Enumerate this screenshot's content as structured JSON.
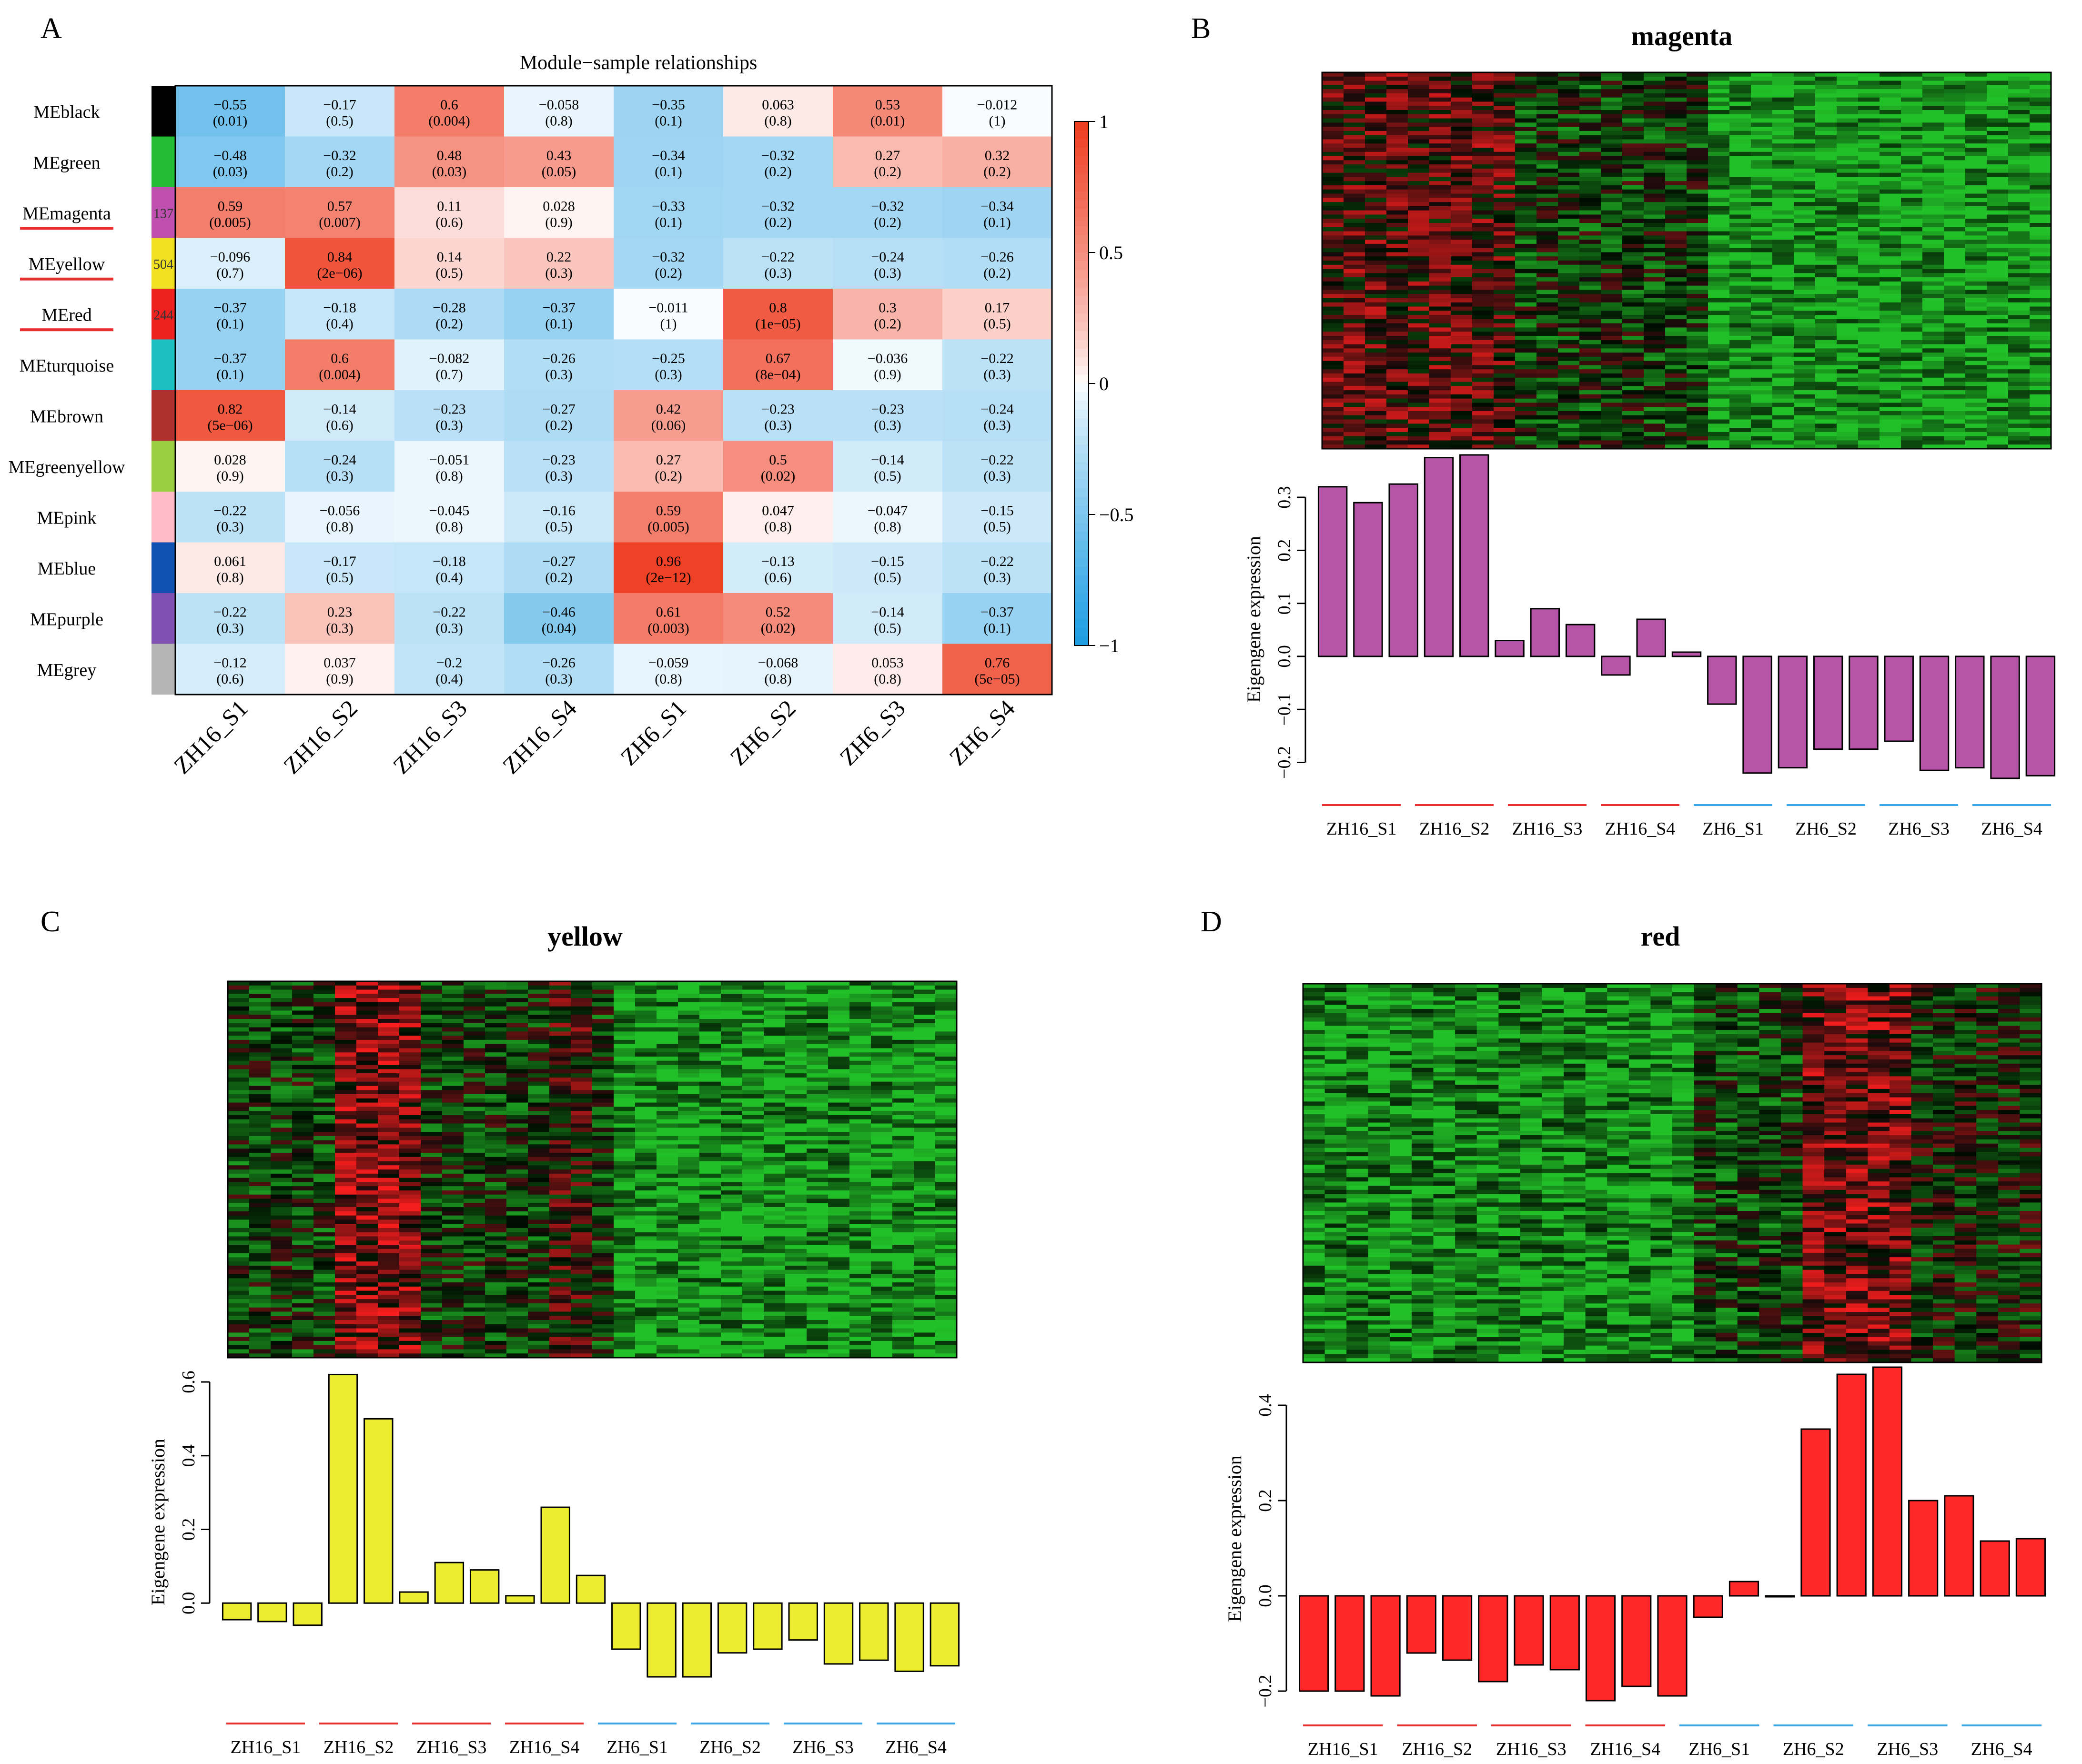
{
  "panels": {
    "A": "A",
    "B": "B",
    "C": "C",
    "D": "D"
  },
  "colors": {
    "heat_pos": "#ee3b1f",
    "heat_neg": "#1b9ce2",
    "heat_mid": "#ffffff",
    "expr_green": "#22c03a",
    "expr_red": "#ff2020",
    "underline_red": "#e83030",
    "underline_blue": "#3aa6e6",
    "bar_magenta": "#b654a8",
    "bar_yellow": "#ecec30",
    "bar_red": "#ff2828"
  },
  "chart_data": [
    {
      "type": "heatmap",
      "title": "Module−sample relationships",
      "columns": [
        "ZH16_S1",
        "ZH16_S2",
        "ZH16_S3",
        "ZH16_S4",
        "ZH6_S1",
        "ZH6_S2",
        "ZH6_S3",
        "ZH6_S4"
      ],
      "rows": [
        {
          "name": "MEblack",
          "color": "#000000",
          "count": "",
          "values": [
            -0.55,
            -0.17,
            0.6,
            -0.058,
            -0.35,
            0.063,
            0.53,
            -0.012
          ],
          "labels": [
            "−0.55",
            "−0.17",
            "0.6",
            "−0.058",
            "−0.35",
            "0.063",
            "0.53",
            "−0.012"
          ],
          "p": [
            "(0.01)",
            "(0.5)",
            "(0.004)",
            "(0.8)",
            "(0.1)",
            "(0.8)",
            "(0.01)",
            "(1)"
          ]
        },
        {
          "name": "MEgreen",
          "color": "#22bb33",
          "count": "",
          "values": [
            -0.48,
            -0.32,
            0.48,
            0.43,
            -0.34,
            -0.32,
            0.27,
            0.32
          ],
          "labels": [
            "−0.48",
            "−0.32",
            "0.48",
            "0.43",
            "−0.34",
            "−0.32",
            "0.27",
            "0.32"
          ],
          "p": [
            "(0.03)",
            "(0.2)",
            "(0.03)",
            "(0.05)",
            "(0.1)",
            "(0.2)",
            "(0.2)",
            "(0.2)"
          ]
        },
        {
          "name": "MEmagenta",
          "color": "#c050b0",
          "count": "137",
          "underlined": true,
          "values": [
            0.59,
            0.57,
            0.11,
            0.028,
            -0.33,
            -0.32,
            -0.32,
            -0.34
          ],
          "labels": [
            "0.59",
            "0.57",
            "0.11",
            "0.028",
            "−0.33",
            "−0.32",
            "−0.32",
            "−0.34"
          ],
          "p": [
            "(0.005)",
            "(0.007)",
            "(0.6)",
            "(0.9)",
            "(0.1)",
            "(0.2)",
            "(0.2)",
            "(0.1)"
          ]
        },
        {
          "name": "MEyellow",
          "color": "#f0e020",
          "count": "504",
          "underlined": true,
          "values": [
            -0.096,
            0.84,
            0.14,
            0.22,
            -0.32,
            -0.22,
            -0.24,
            -0.26
          ],
          "labels": [
            "−0.096",
            "0.84",
            "0.14",
            "0.22",
            "−0.32",
            "−0.22",
            "−0.24",
            "−0.26"
          ],
          "p": [
            "(0.7)",
            "(2e−06)",
            "(0.5)",
            "(0.3)",
            "(0.2)",
            "(0.3)",
            "(0.3)",
            "(0.2)"
          ]
        },
        {
          "name": "MEred",
          "color": "#ee2020",
          "count": "244",
          "underlined": true,
          "values": [
            -0.37,
            -0.18,
            -0.28,
            -0.37,
            -0.011,
            0.8,
            0.3,
            0.17
          ],
          "labels": [
            "−0.37",
            "−0.18",
            "−0.28",
            "−0.37",
            "−0.011",
            "0.8",
            "0.3",
            "0.17"
          ],
          "p": [
            "(0.1)",
            "(0.4)",
            "(0.2)",
            "(0.1)",
            "(1)",
            "(1e−05)",
            "(0.2)",
            "(0.5)"
          ]
        },
        {
          "name": "MEturquoise",
          "color": "#1cc0c0",
          "count": "",
          "values": [
            -0.37,
            0.6,
            -0.082,
            -0.26,
            -0.25,
            0.67,
            -0.036,
            -0.22
          ],
          "labels": [
            "−0.37",
            "0.6",
            "−0.082",
            "−0.26",
            "−0.25",
            "0.67",
            "−0.036",
            "−0.22"
          ],
          "p": [
            "(0.1)",
            "(0.004)",
            "(0.7)",
            "(0.3)",
            "(0.3)",
            "(8e−04)",
            "(0.9)",
            "(0.3)"
          ]
        },
        {
          "name": "MEbrown",
          "color": "#b03030",
          "count": "",
          "values": [
            0.82,
            -0.14,
            -0.23,
            -0.27,
            0.42,
            -0.23,
            -0.23,
            -0.24
          ],
          "labels": [
            "0.82",
            "−0.14",
            "−0.23",
            "−0.27",
            "0.42",
            "−0.23",
            "−0.23",
            "−0.24"
          ],
          "p": [
            "(5e−06)",
            "(0.6)",
            "(0.3)",
            "(0.2)",
            "(0.06)",
            "(0.3)",
            "(0.3)",
            "(0.3)"
          ]
        },
        {
          "name": "MEgreenyellow",
          "color": "#9acd40",
          "count": "",
          "values": [
            0.028,
            -0.24,
            -0.051,
            -0.23,
            0.27,
            0.5,
            -0.14,
            -0.22
          ],
          "labels": [
            "0.028",
            "−0.24",
            "−0.051",
            "−0.23",
            "0.27",
            "0.5",
            "−0.14",
            "−0.22"
          ],
          "p": [
            "(0.9)",
            "(0.3)",
            "(0.8)",
            "(0.3)",
            "(0.2)",
            "(0.02)",
            "(0.5)",
            "(0.3)"
          ]
        },
        {
          "name": "MEpink",
          "color": "#ffbcc8",
          "count": "",
          "values": [
            -0.22,
            -0.056,
            -0.045,
            -0.16,
            0.59,
            0.047,
            -0.047,
            -0.15
          ],
          "labels": [
            "−0.22",
            "−0.056",
            "−0.045",
            "−0.16",
            "0.59",
            "0.047",
            "−0.047",
            "−0.15"
          ],
          "p": [
            "(0.3)",
            "(0.8)",
            "(0.8)",
            "(0.5)",
            "(0.005)",
            "(0.8)",
            "(0.8)",
            "(0.5)"
          ]
        },
        {
          "name": "MEblue",
          "color": "#1050b0",
          "count": "",
          "values": [
            0.061,
            -0.17,
            -0.18,
            -0.27,
            0.96,
            -0.13,
            -0.15,
            -0.22
          ],
          "labels": [
            "0.061",
            "−0.17",
            "−0.18",
            "−0.27",
            "0.96",
            "−0.13",
            "−0.15",
            "−0.22"
          ],
          "p": [
            "(0.8)",
            "(0.5)",
            "(0.4)",
            "(0.2)",
            "(2e−12)",
            "(0.6)",
            "(0.5)",
            "(0.3)"
          ]
        },
        {
          "name": "MEpurple",
          "color": "#8050b0",
          "count": "",
          "values": [
            -0.22,
            0.23,
            -0.22,
            -0.46,
            0.61,
            0.52,
            -0.14,
            -0.37
          ],
          "labels": [
            "−0.22",
            "0.23",
            "−0.22",
            "−0.46",
            "0.61",
            "0.52",
            "−0.14",
            "−0.37"
          ],
          "p": [
            "(0.3)",
            "(0.3)",
            "(0.3)",
            "(0.04)",
            "(0.003)",
            "(0.02)",
            "(0.5)",
            "(0.1)"
          ]
        },
        {
          "name": "MEgrey",
          "color": "#b4b4b4",
          "count": "",
          "values": [
            -0.12,
            0.037,
            -0.2,
            -0.26,
            -0.059,
            -0.068,
            0.053,
            0.76
          ],
          "labels": [
            "−0.12",
            "0.037",
            "−0.2",
            "−0.26",
            "−0.059",
            "−0.068",
            "0.053",
            "0.76"
          ],
          "p": [
            "(0.6)",
            "(0.9)",
            "(0.4)",
            "(0.3)",
            "(0.8)",
            "(0.8)",
            "(0.8)",
            "(5e−05)"
          ]
        }
      ],
      "scale": {
        "min": -1,
        "max": 1,
        "ticks": [
          "1",
          "0.5",
          "0",
          "−0.5",
          "−1"
        ],
        "tick_values": [
          1,
          0.5,
          0,
          -0.5,
          -1
        ]
      }
    },
    {
      "type": "bar",
      "title": "magenta",
      "ylabel": "Eigengene expression",
      "ylim": [
        -0.24,
        0.38
      ],
      "yticks": [
        -0.2,
        -0.1,
        0.0,
        0.1,
        0.2,
        0.3
      ],
      "ytick_labels": [
        "−0.2",
        "−0.1",
        "0.0",
        "0.1",
        "0.2",
        "0.3"
      ],
      "groups": [
        "ZH16_S1",
        "ZH16_S2",
        "ZH16_S3",
        "ZH16_S4",
        "ZH6_S1",
        "ZH6_S2",
        "ZH6_S3",
        "ZH6_S4"
      ],
      "values": [
        0.32,
        0.29,
        0.325,
        0.375,
        0.38,
        0.03,
        0.09,
        0.06,
        -0.035,
        0.07,
        0.008,
        -0.09,
        -0.22,
        -0.21,
        -0.175,
        -0.175,
        -0.16,
        -0.215,
        -0.21,
        -0.23,
        -0.225
      ],
      "heatmap_pattern": "red-first-half"
    },
    {
      "type": "bar",
      "title": "yellow",
      "ylabel": "Eigengene expression",
      "ylim": [
        -0.2,
        0.64
      ],
      "yticks": [
        0.0,
        0.2,
        0.4,
        0.6
      ],
      "ytick_labels": [
        "0.0",
        "0.2",
        "0.4",
        "0.6"
      ],
      "groups": [
        "ZH16_S1",
        "ZH16_S2",
        "ZH16_S3",
        "ZH16_S4",
        "ZH6_S1",
        "ZH6_S2",
        "ZH6_S3",
        "ZH6_S4"
      ],
      "values": [
        -0.045,
        -0.05,
        -0.06,
        0.62,
        0.5,
        0.03,
        0.11,
        0.09,
        0.02,
        0.26,
        0.075,
        -0.125,
        -0.2,
        -0.2,
        -0.135,
        -0.125,
        -0.1,
        -0.165,
        -0.155,
        -0.185,
        -0.17
      ],
      "heatmap_pattern": "yellow"
    },
    {
      "type": "bar",
      "title": "red",
      "ylabel": "Eigengene expression",
      "ylim": [
        -0.24,
        0.48
      ],
      "yticks": [
        -0.2,
        0.0,
        0.2,
        0.4
      ],
      "ytick_labels": [
        "−0.2",
        "0.0",
        "0.2",
        "0.4"
      ],
      "groups": [
        "ZH16_S1",
        "ZH16_S2",
        "ZH16_S3",
        "ZH16_S4",
        "ZH6_S1",
        "ZH6_S2",
        "ZH6_S3",
        "ZH6_S4"
      ],
      "values": [
        -0.2,
        -0.2,
        -0.21,
        -0.12,
        -0.135,
        -0.18,
        -0.145,
        -0.155,
        -0.22,
        -0.19,
        -0.21,
        -0.045,
        0.03,
        0.0,
        0.35,
        0.465,
        0.48,
        0.2,
        0.21,
        0.115,
        0.12
      ],
      "heatmap_pattern": "red"
    }
  ]
}
